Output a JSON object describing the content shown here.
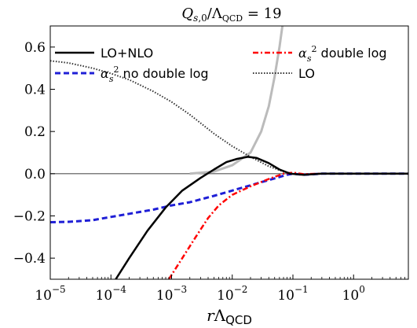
{
  "chart_data": {
    "type": "line",
    "title": "Q_s,0/Λ_QCD = 19",
    "xlabel": "rΛ_QCD",
    "ylabel": "",
    "xscale": "log",
    "xlim": [
      1e-05,
      8
    ],
    "ylim": [
      -0.5,
      0.7
    ],
    "x_ticks": [
      {
        "value": 1e-05,
        "base": "10",
        "exp": "−5"
      },
      {
        "value": 0.0001,
        "base": "10",
        "exp": "−4"
      },
      {
        "value": 0.001,
        "base": "10",
        "exp": "−3"
      },
      {
        "value": 0.01,
        "base": "10",
        "exp": "−2"
      },
      {
        "value": 0.1,
        "base": "10",
        "exp": "−1"
      },
      {
        "value": 1,
        "base": "10",
        "exp": "0"
      }
    ],
    "y_ticks": [
      {
        "value": 0.6,
        "label": "0.6"
      },
      {
        "value": 0.4,
        "label": "0.4"
      },
      {
        "value": 0.2,
        "label": "0.2"
      },
      {
        "value": 0.0,
        "label": "0.0"
      },
      {
        "value": -0.2,
        "label": "−0.2"
      },
      {
        "value": -0.4,
        "label": "−0.4"
      }
    ],
    "grid": false,
    "legend": "top, two columns",
    "reference_line": {
      "y": 0.0,
      "color": "#555555"
    },
    "series": [
      {
        "name": "LO+NLO",
        "color": "#000000",
        "style": "solid",
        "points": [
          [
            0.00012,
            -0.5
          ],
          [
            0.0002,
            -0.4
          ],
          [
            0.0004,
            -0.27
          ],
          [
            0.0008,
            -0.16
          ],
          [
            0.0015,
            -0.08
          ],
          [
            0.003,
            -0.02
          ],
          [
            0.005,
            0.02
          ],
          [
            0.008,
            0.055
          ],
          [
            0.012,
            0.07
          ],
          [
            0.018,
            0.08
          ],
          [
            0.025,
            0.075
          ],
          [
            0.04,
            0.05
          ],
          [
            0.06,
            0.02
          ],
          [
            0.09,
            0.0
          ],
          [
            0.15,
            -0.005
          ],
          [
            0.3,
            0.0
          ],
          [
            1,
            0.0
          ],
          [
            8,
            0.0
          ]
        ]
      },
      {
        "name": "α_s² no double log",
        "color": "#1f1fd6",
        "style": "dashed",
        "points": [
          [
            1e-05,
            -0.23
          ],
          [
            2e-05,
            -0.228
          ],
          [
            5e-05,
            -0.22
          ],
          [
            0.0001,
            -0.205
          ],
          [
            0.0002,
            -0.19
          ],
          [
            0.0005,
            -0.17
          ],
          [
            0.001,
            -0.15
          ],
          [
            0.002,
            -0.135
          ],
          [
            0.005,
            -0.105
          ],
          [
            0.01,
            -0.08
          ],
          [
            0.02,
            -0.055
          ],
          [
            0.04,
            -0.03
          ],
          [
            0.08,
            -0.005
          ],
          [
            0.1,
            0.0
          ],
          [
            0.15,
            -0.005
          ],
          [
            0.3,
            0.0
          ],
          [
            1,
            0.0
          ],
          [
            8,
            0.0
          ]
        ]
      },
      {
        "name": "α_s² double log",
        "color": "#ff0000",
        "style": "dashdot",
        "points": [
          [
            0.0009,
            -0.5
          ],
          [
            0.0015,
            -0.4
          ],
          [
            0.0025,
            -0.3
          ],
          [
            0.004,
            -0.21
          ],
          [
            0.006,
            -0.15
          ],
          [
            0.01,
            -0.1
          ],
          [
            0.02,
            -0.06
          ],
          [
            0.04,
            -0.025
          ],
          [
            0.07,
            0.0
          ],
          [
            0.1,
            0.005
          ],
          [
            0.15,
            -0.002
          ],
          [
            0.3,
            0.0
          ],
          [
            1,
            0.0
          ],
          [
            8,
            0.0
          ]
        ]
      },
      {
        "name": "LO",
        "color": "#333333",
        "style": "dotted",
        "points": [
          [
            1e-05,
            0.535
          ],
          [
            2e-05,
            0.525
          ],
          [
            5e-05,
            0.5
          ],
          [
            0.0001,
            0.475
          ],
          [
            0.0002,
            0.445
          ],
          [
            0.0005,
            0.39
          ],
          [
            0.001,
            0.34
          ],
          [
            0.002,
            0.28
          ],
          [
            0.005,
            0.19
          ],
          [
            0.01,
            0.13
          ],
          [
            0.02,
            0.08
          ],
          [
            0.04,
            0.035
          ],
          [
            0.07,
            0.01
          ],
          [
            0.1,
            0.0
          ],
          [
            0.15,
            -0.003
          ],
          [
            0.3,
            0.0
          ],
          [
            1,
            0.0
          ],
          [
            8,
            0.0
          ]
        ]
      },
      {
        "name": "",
        "color": "#bbbbbb",
        "style": "solid-thick",
        "points": [
          [
            0.002,
            0.0
          ],
          [
            0.005,
            0.01
          ],
          [
            0.01,
            0.04
          ],
          [
            0.02,
            0.1
          ],
          [
            0.03,
            0.2
          ],
          [
            0.04,
            0.32
          ],
          [
            0.05,
            0.46
          ],
          [
            0.06,
            0.6
          ],
          [
            0.067,
            0.7
          ]
        ]
      }
    ]
  }
}
